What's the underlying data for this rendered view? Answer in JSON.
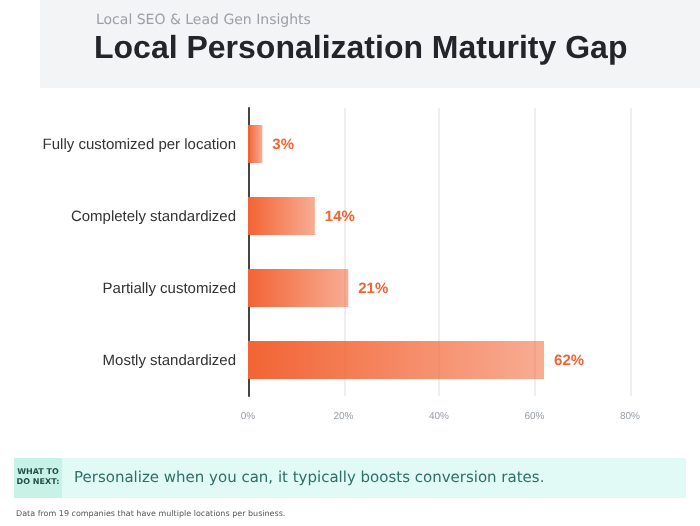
{
  "chart_data": {
    "type": "bar",
    "orientation": "horizontal",
    "subtitle": "Local SEO & Lead Gen Insights",
    "title": "Local Personalization Maturity Gap",
    "categories": [
      "Fully customized per location",
      "Completely standardized",
      "Partially customized",
      "Mostly standardized"
    ],
    "values": [
      3,
      14,
      21,
      62
    ],
    "value_labels": [
      "3%",
      "14%",
      "21%",
      "62%"
    ],
    "color": "#f26434",
    "xlim": [
      0,
      80
    ],
    "xticks": [
      {
        "value": 0,
        "label": "0%"
      },
      {
        "value": 20,
        "label": "20%"
      },
      {
        "value": 40,
        "label": "40%"
      },
      {
        "value": 60,
        "label": "60%"
      },
      {
        "value": 80,
        "label": "80%"
      }
    ],
    "grid": "x",
    "annotations": [
      "WHAT TO DO NEXT:",
      "Personalize when you can, it typically boosts conversion rates.",
      "Data from 19 companies that have multiple locations per business."
    ]
  }
}
